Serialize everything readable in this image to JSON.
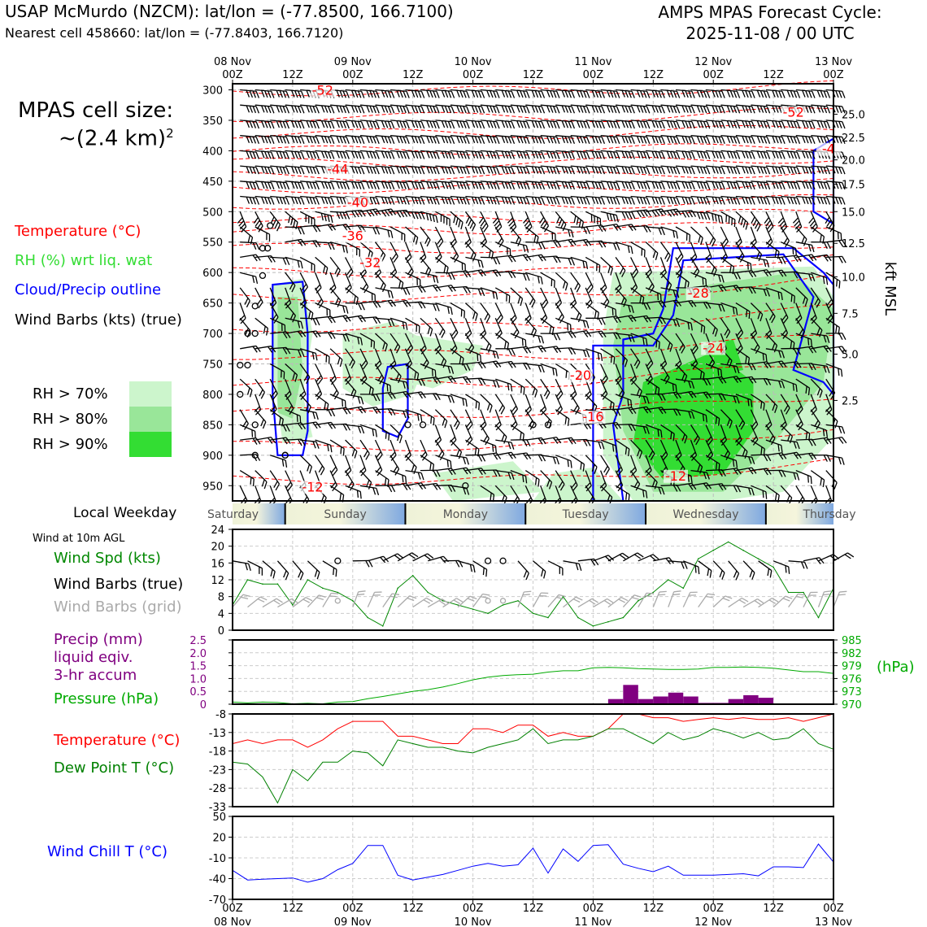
{
  "header": {
    "station": "USAP McMurdo (NZCM): lat/lon = (-77.8500, 166.7100)",
    "nearest": "Nearest cell 458660: lat/lon = (-77.8403, 166.7120)",
    "cycle_line1": "AMPS MPAS Forecast Cycle:",
    "cycle_line2": "2025-11-08 / 00 UTC"
  },
  "left_panel": {
    "cell_size_line1": "MPAS cell size:",
    "cell_size_line2": "~(2.4 km)",
    "cell_size_sup": "2",
    "legend_temperature": "Temperature (°C)",
    "legend_rh": "RH (%) wrt liq. wat",
    "legend_cloud": "Cloud/Precip outline",
    "legend_wind": "Wind Barbs (kts) (true)",
    "rh_levels": [
      {
        "label": "RH > 70%",
        "color": "#ccf5cc"
      },
      {
        "label": "RH > 80%",
        "color": "#99e699"
      },
      {
        "label": "RH > 90%",
        "color": "#33dd33"
      }
    ],
    "local_weekday": "Local Weekday",
    "wind_10m": "Wind at 10m AGL",
    "legend_wind_spd": "Wind Spd (kts)",
    "legend_wind_barbs_true": "Wind Barbs (true)",
    "legend_wind_barbs_grid": "Wind Barbs (grid)",
    "legend_precip_1": "Precip (mm)",
    "legend_precip_2": "liquid eqiv.",
    "legend_precip_3": "3-hr accum",
    "legend_pressure": "Pressure (hPa)",
    "legend_temp2": "Temperature (°C)",
    "legend_dewpoint": "Dew Point T (°C)",
    "legend_windchill": "Wind Chill T (°C)"
  },
  "colors": {
    "temperature": "#ff0000",
    "rh": "#33cc33",
    "cloud": "#0000ff",
    "wind_spd": "#008800",
    "wind_grid": "#aaaaaa",
    "precip": "#800080",
    "pressure": "#00aa00",
    "dewpoint": "#008000",
    "windchill": "#0000ff"
  },
  "chart_data": [
    {
      "type": "contour",
      "name": "upper-air cross section",
      "x_labels_top": [
        {
          "top": "08 Nov",
          "bottom": "00Z"
        },
        {
          "top": "",
          "bottom": "12Z"
        },
        {
          "top": "09 Nov",
          "bottom": "00Z"
        },
        {
          "top": "",
          "bottom": "12Z"
        },
        {
          "top": "10 Nov",
          "bottom": "00Z"
        },
        {
          "top": "",
          "bottom": "12Z"
        },
        {
          "top": "11 Nov",
          "bottom": "00Z"
        },
        {
          "top": "",
          "bottom": "12Z"
        },
        {
          "top": "12 Nov",
          "bottom": "00Z"
        },
        {
          "top": "",
          "bottom": "12Z"
        },
        {
          "top": "13 Nov",
          "bottom": "00Z"
        }
      ],
      "x_range_hours": [
        0,
        120
      ],
      "ylabel_left": "Pressure (hPa)",
      "pressure_ticks": [
        300,
        350,
        400,
        450,
        500,
        550,
        600,
        650,
        700,
        750,
        800,
        850,
        900,
        950
      ],
      "pressure_range": [
        290,
        975
      ],
      "kft_ticks": [
        "25.0",
        "22.5",
        "20.0",
        "17.5",
        "15.0",
        "12.5",
        "10.0",
        "7.5",
        "5.0",
        "2.5"
      ],
      "kft_pressure": [
        340,
        378,
        415,
        455,
        500,
        552,
        607,
        667,
        734,
        810
      ],
      "ylabel_right": "kft MSL",
      "temperature_labels": [
        {
          "text": "-52",
          "hour": 18,
          "p": 307
        },
        {
          "text": "-52",
          "hour": 112,
          "p": 343
        },
        {
          "text": "-4",
          "hour": 119,
          "p": 403
        },
        {
          "text": "-44",
          "hour": 21,
          "p": 436
        },
        {
          "text": "-40",
          "hour": 25,
          "p": 491
        },
        {
          "text": "-36",
          "hour": 24,
          "p": 546
        },
        {
          "text": "-32",
          "hour": 27.5,
          "p": 590
        },
        {
          "text": "-28",
          "hour": 93,
          "p": 640
        },
        {
          "text": "-24",
          "hour": 96,
          "p": 730
        },
        {
          "text": "-20",
          "hour": 69.5,
          "p": 775
        },
        {
          "text": "-16",
          "hour": 72,
          "p": 843
        },
        {
          "text": "-12",
          "hour": 16,
          "p": 958
        },
        {
          "text": "-12",
          "hour": 88.5,
          "p": 940
        }
      ],
      "calm_winds": [
        {
          "hour": 7.5,
          "p": 523
        },
        {
          "hour": 6,
          "p": 560
        },
        {
          "hour": 7,
          "p": 560
        },
        {
          "hour": 6,
          "p": 605
        },
        {
          "hour": 4.5,
          "p": 655
        },
        {
          "hour": 3,
          "p": 700
        },
        {
          "hour": 4.5,
          "p": 700
        },
        {
          "hour": 1.5,
          "p": 752
        },
        {
          "hour": 3,
          "p": 752
        },
        {
          "hour": 1.5,
          "p": 800
        },
        {
          "hour": 4.5,
          "p": 850
        },
        {
          "hour": 4.5,
          "p": 900
        },
        {
          "hour": 10.5,
          "p": 900
        },
        {
          "hour": 10.5,
          "p": 900
        },
        {
          "hour": 35,
          "p": 850
        },
        {
          "hour": 38,
          "p": 850
        },
        {
          "hour": 46.5,
          "p": 950
        },
        {
          "hour": 60,
          "p": 850
        },
        {
          "hour": 63,
          "p": 850
        }
      ]
    },
    {
      "type": "weekday_band",
      "days": [
        "Saturday",
        "Sunday",
        "Monday",
        "Tuesday",
        "Wednesday",
        "Thursday"
      ],
      "boundaries_hours": [
        0,
        10.5,
        34.5,
        58.5,
        82.5,
        106.5,
        120
      ]
    },
    {
      "type": "line",
      "name": "wind at 10m",
      "ylim": [
        0,
        24
      ],
      "yticks": [
        0,
        4,
        8,
        12,
        16,
        20,
        24
      ],
      "x_hours": [
        0,
        3,
        6,
        9,
        12,
        15,
        18,
        21,
        24,
        27,
        30,
        33,
        36,
        39,
        42,
        45,
        48,
        51,
        54,
        57,
        60,
        63,
        66,
        69,
        72,
        75,
        78,
        81,
        84,
        87,
        90,
        93,
        96,
        99,
        102,
        105,
        108,
        111,
        114,
        117,
        120
      ],
      "series": [
        {
          "name": "Wind Spd (kts)",
          "values": [
            6,
            12,
            11,
            11,
            6,
            12,
            10,
            9,
            7,
            3,
            1,
            10,
            13,
            9,
            7,
            6,
            5,
            4,
            6,
            7,
            4,
            3,
            8,
            3,
            1,
            2,
            3,
            7,
            9,
            12,
            10,
            17,
            19,
            21,
            19,
            17,
            15,
            9,
            9,
            3,
            10
          ]
        }
      ],
      "calm_hours": [
        21,
        51,
        52.5
      ]
    },
    {
      "type": "bar",
      "name": "precip and pressure",
      "ylim_left": [
        0,
        2.5
      ],
      "yticks_left": [
        0,
        0.5,
        1.0,
        1.5,
        2.0,
        2.5
      ],
      "ytick_labels_left": [
        "0",
        "0.5",
        "1.0",
        "1.5",
        "2.0",
        "2.5"
      ],
      "ylim_right": [
        970,
        985
      ],
      "yticks_right": [
        970,
        973,
        976,
        979,
        982,
        985
      ],
      "ylabel_right": "(hPa)",
      "precip_hours": [
        78,
        81,
        84,
        87,
        90,
        93,
        96,
        99,
        102,
        105,
        108,
        111
      ],
      "precip_values": [
        0.2,
        0.75,
        0.2,
        0.3,
        0.45,
        0.3,
        0.05,
        0.05,
        0.2,
        0.35,
        0.25,
        0.0
      ],
      "pressure_hours": [
        0,
        3,
        6,
        9,
        12,
        15,
        18,
        21,
        24,
        27,
        30,
        33,
        36,
        39,
        42,
        45,
        48,
        51,
        54,
        57,
        60,
        63,
        66,
        69,
        72,
        75,
        78,
        81,
        84,
        87,
        90,
        93,
        96,
        99,
        102,
        105,
        108,
        111,
        114,
        117,
        120
      ],
      "pressure_values": [
        970.5,
        970.3,
        970.5,
        970.4,
        970.1,
        970.2,
        970.1,
        970.5,
        970.6,
        971.3,
        971.8,
        972.4,
        973.0,
        973.4,
        974.0,
        974.8,
        975.7,
        976.3,
        976.7,
        976.9,
        977.0,
        977.5,
        977.8,
        977.8,
        978.5,
        978.6,
        978.5,
        978.3,
        978.2,
        978.1,
        978.1,
        978.2,
        978.6,
        978.6,
        978.7,
        978.6,
        978.4,
        978.0,
        977.6,
        977.6,
        977.2
      ]
    },
    {
      "type": "line",
      "name": "temperature and dew point",
      "ylim": [
        -33,
        -8
      ],
      "yticks": [
        -33,
        -28,
        -23,
        -18,
        -13,
        -8
      ],
      "x_hours": [
        0,
        3,
        6,
        9,
        12,
        15,
        18,
        21,
        24,
        27,
        30,
        33,
        36,
        39,
        42,
        45,
        48,
        51,
        54,
        57,
        60,
        63,
        66,
        69,
        72,
        75,
        78,
        81,
        84,
        87,
        90,
        93,
        96,
        99,
        102,
        105,
        108,
        111,
        114,
        117,
        120
      ],
      "series": [
        {
          "name": "Temperature (°C)",
          "values": [
            -16,
            -15,
            -16,
            -15,
            -15,
            -17,
            -15,
            -12,
            -10,
            -10,
            -10,
            -14,
            -14,
            -15,
            -16,
            -16,
            -12,
            -12,
            -13,
            -11,
            -11,
            -14,
            -13,
            -14,
            -14,
            -12,
            -8,
            -8,
            -9,
            -9,
            -10,
            -9.5,
            -9,
            -9.5,
            -9,
            -9.5,
            -9.5,
            -9,
            -10,
            -9,
            -8
          ]
        },
        {
          "name": "Dew Point T (°C)",
          "values": [
            -21,
            -21.5,
            -25,
            -32,
            -23,
            -26,
            -21,
            -21,
            -18,
            -18.5,
            -22,
            -15,
            -16,
            -17,
            -17,
            -18,
            -18.5,
            -17,
            -16,
            -15,
            -12,
            -16,
            -15,
            -15,
            -14,
            -12,
            -12,
            -14,
            -16,
            -13,
            -15,
            -14,
            -12,
            -13,
            -14.5,
            -13,
            -15,
            -14.5,
            -12,
            -16,
            -17.5
          ]
        }
      ]
    },
    {
      "type": "line",
      "name": "wind chill",
      "ylim": [
        -70,
        50
      ],
      "yticks": [
        -70,
        -40,
        -10,
        20,
        50
      ],
      "x_hours": [
        0,
        3,
        6,
        9,
        12,
        15,
        18,
        21,
        24,
        27,
        30,
        33,
        36,
        39,
        42,
        45,
        48,
        51,
        54,
        57,
        60,
        63,
        66,
        69,
        72,
        75,
        78,
        81,
        84,
        87,
        90,
        93,
        96,
        99,
        102,
        105,
        108,
        111,
        114,
        117,
        120
      ],
      "series": [
        {
          "name": "Wind Chill T (°C)",
          "values": [
            -28,
            -42,
            -41,
            -40,
            -39,
            -45,
            -40,
            -27,
            -18,
            8,
            8,
            -35,
            -42,
            -38,
            -34,
            -28,
            -22,
            -18,
            -22,
            -20,
            4,
            -32,
            3,
            -15,
            8,
            9,
            -19,
            -25,
            -30,
            -22,
            -35,
            -35,
            -35,
            -34,
            -33,
            -36,
            -23,
            -23,
            -24,
            10,
            -16
          ]
        }
      ]
    }
  ],
  "bottom_axis": [
    {
      "top": "00Z",
      "bottom": "08 Nov"
    },
    {
      "top": "12Z",
      "bottom": ""
    },
    {
      "top": "00Z",
      "bottom": "09 Nov"
    },
    {
      "top": "12Z",
      "bottom": ""
    },
    {
      "top": "00Z",
      "bottom": "10 Nov"
    },
    {
      "top": "12Z",
      "bottom": ""
    },
    {
      "top": "00Z",
      "bottom": "11 Nov"
    },
    {
      "top": "12Z",
      "bottom": ""
    },
    {
      "top": "00Z",
      "bottom": "12 Nov"
    },
    {
      "top": "12Z",
      "bottom": ""
    },
    {
      "top": "00Z",
      "bottom": "13 Nov"
    }
  ]
}
